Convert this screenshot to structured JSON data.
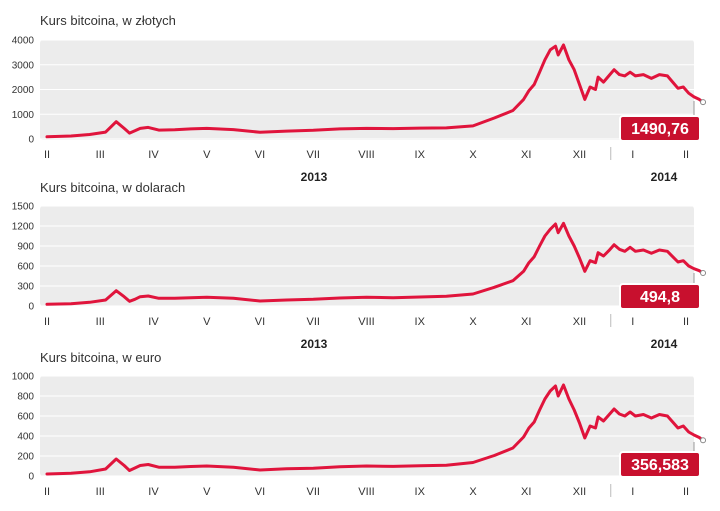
{
  "chart_data": [
    {
      "type": "line",
      "title": "Kurs bitcoina, w złotych",
      "yticks": [
        "4000",
        "3000",
        "2000",
        "1000",
        "0"
      ],
      "ylim": [
        0,
        4000
      ],
      "months": [
        "II",
        "III",
        "IV",
        "V",
        "VI",
        "VII",
        "VIII",
        "IX",
        "X",
        "XI",
        "XII",
        "I",
        "II"
      ],
      "years": [
        "2013",
        "2014"
      ],
      "latest_value": "1490,76",
      "color": "#e0143c",
      "grid": true,
      "x": [
        0.0,
        0.45,
        0.8,
        1.1,
        1.3,
        1.45,
        1.55,
        1.65,
        1.75,
        1.9,
        2.1,
        2.4,
        2.7,
        3.0,
        3.5,
        4.0,
        4.5,
        5.0,
        5.5,
        6.0,
        6.5,
        7.0,
        7.5,
        8.0,
        8.4,
        8.75,
        8.95,
        9.05,
        9.15,
        9.25,
        9.35,
        9.45,
        9.55,
        9.6,
        9.7,
        9.8,
        9.9,
        10.0,
        10.1,
        10.2,
        10.3,
        10.35,
        10.45,
        10.55,
        10.65,
        10.75,
        10.85,
        10.95,
        11.05,
        11.2,
        11.35,
        11.5,
        11.65,
        11.75,
        11.85,
        11.95,
        12.05,
        12.15,
        12.25,
        12.32
      ],
      "values": [
        90,
        120,
        180,
        280,
        700,
        430,
        240,
        330,
        430,
        470,
        360,
        370,
        410,
        430,
        380,
        270,
        320,
        350,
        410,
        430,
        420,
        440,
        450,
        530,
        850,
        1150,
        1600,
        1950,
        2200,
        2700,
        3200,
        3600,
        3750,
        3400,
        3800,
        3200,
        2800,
        2200,
        1600,
        2100,
        2000,
        2500,
        2300,
        2550,
        2800,
        2600,
        2550,
        2700,
        2550,
        2600,
        2450,
        2600,
        2550,
        2300,
        2050,
        2100,
        1850,
        1700,
        1600,
        1490
      ]
    },
    {
      "type": "line",
      "title": "Kurs bitcoina, w dolarach",
      "yticks": [
        "1500",
        "1200",
        "900",
        "600",
        "300",
        "0"
      ],
      "ylim": [
        0,
        1500
      ],
      "months": [
        "II",
        "III",
        "IV",
        "V",
        "VI",
        "VII",
        "VIII",
        "IX",
        "X",
        "XI",
        "XII",
        "I",
        "II"
      ],
      "years": [
        "2013",
        "2014"
      ],
      "latest_value": "494,8",
      "color": "#e0143c",
      "grid": true,
      "x": [
        0.0,
        0.45,
        0.8,
        1.1,
        1.3,
        1.45,
        1.55,
        1.65,
        1.75,
        1.9,
        2.1,
        2.4,
        2.7,
        3.0,
        3.5,
        4.0,
        4.5,
        5.0,
        5.5,
        6.0,
        6.5,
        7.0,
        7.5,
        8.0,
        8.4,
        8.75,
        8.95,
        9.05,
        9.15,
        9.25,
        9.35,
        9.45,
        9.55,
        9.6,
        9.7,
        9.8,
        9.9,
        10.0,
        10.1,
        10.2,
        10.3,
        10.35,
        10.45,
        10.55,
        10.65,
        10.75,
        10.85,
        10.95,
        11.05,
        11.2,
        11.35,
        11.5,
        11.65,
        11.75,
        11.85,
        11.95,
        12.05,
        12.15,
        12.25,
        12.32
      ],
      "values": [
        25,
        35,
        55,
        90,
        230,
        140,
        70,
        100,
        140,
        150,
        115,
        115,
        125,
        130,
        115,
        75,
        90,
        100,
        120,
        130,
        125,
        135,
        145,
        180,
        280,
        380,
        520,
        650,
        740,
        900,
        1050,
        1150,
        1230,
        1100,
        1240,
        1050,
        900,
        720,
        520,
        680,
        650,
        800,
        750,
        830,
        920,
        850,
        820,
        880,
        820,
        840,
        790,
        840,
        820,
        740,
        660,
        680,
        600,
        560,
        530,
        495
      ]
    },
    {
      "type": "line",
      "title": "Kurs bitcoina, w euro",
      "yticks": [
        "1000",
        "800",
        "600",
        "400",
        "200",
        "0"
      ],
      "ylim": [
        0,
        1000
      ],
      "months": [
        "II",
        "III",
        "IV",
        "V",
        "VI",
        "VII",
        "VIII",
        "IX",
        "X",
        "XI",
        "XII",
        "I",
        "II"
      ],
      "years": [],
      "latest_value": "356,583",
      "color": "#e0143c",
      "grid": true,
      "x": [
        0.0,
        0.45,
        0.8,
        1.1,
        1.3,
        1.45,
        1.55,
        1.65,
        1.75,
        1.9,
        2.1,
        2.4,
        2.7,
        3.0,
        3.5,
        4.0,
        4.5,
        5.0,
        5.5,
        6.0,
        6.5,
        7.0,
        7.5,
        8.0,
        8.4,
        8.75,
        8.95,
        9.05,
        9.15,
        9.25,
        9.35,
        9.45,
        9.55,
        9.6,
        9.7,
        9.8,
        9.9,
        10.0,
        10.1,
        10.2,
        10.3,
        10.35,
        10.45,
        10.55,
        10.65,
        10.75,
        10.85,
        10.95,
        11.05,
        11.2,
        11.35,
        11.5,
        11.65,
        11.75,
        11.85,
        11.95,
        12.05,
        12.15,
        12.25,
        12.32
      ],
      "values": [
        20,
        28,
        42,
        70,
        170,
        105,
        55,
        80,
        105,
        115,
        88,
        88,
        95,
        100,
        88,
        60,
        72,
        78,
        92,
        100,
        96,
        102,
        108,
        135,
        205,
        280,
        390,
        480,
        540,
        660,
        770,
        850,
        900,
        800,
        910,
        770,
        660,
        530,
        380,
        500,
        480,
        590,
        550,
        610,
        670,
        620,
        600,
        640,
        600,
        615,
        580,
        615,
        600,
        540,
        480,
        500,
        440,
        410,
        385,
        357
      ]
    }
  ]
}
